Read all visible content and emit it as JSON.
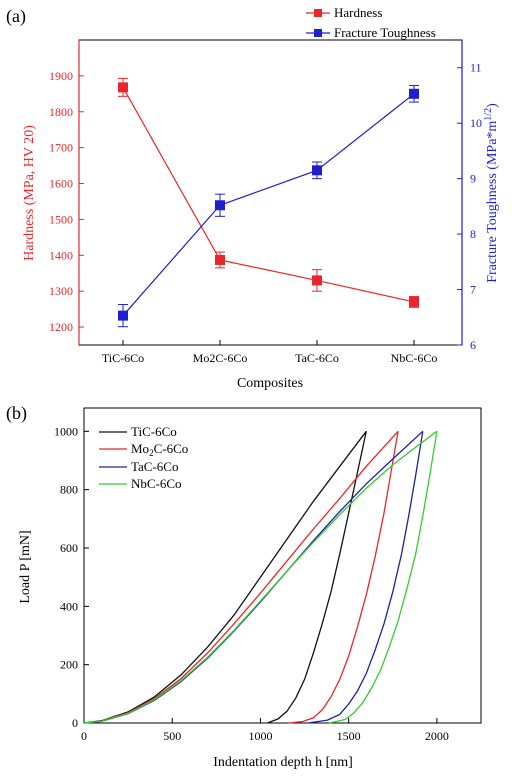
{
  "chart_data": [
    {
      "type": "line",
      "panel_label": "(a)",
      "categories": [
        "TiC-6Co",
        "Mo2C-6Co",
        "TaC-6Co",
        "NbC-6Co"
      ],
      "series": [
        {
          "name": "Hardness",
          "axis": "left",
          "color": "#e8262b",
          "values": [
            1868,
            1387,
            1330,
            1270
          ],
          "errors": [
            25,
            22,
            30,
            15
          ]
        },
        {
          "name": "Fracture Toughness",
          "axis": "right",
          "color": "#1f1fd0",
          "values": [
            6.53,
            8.52,
            9.15,
            10.53
          ],
          "errors": [
            0.2,
            0.2,
            0.15,
            0.15
          ]
        }
      ],
      "xlabel": "Composites",
      "ylabel_left": "Hardness (MPa, HV 20)",
      "ylabel_right": "Fracture Toughness (MPa*m",
      "ylabel_right_sup": "1/2",
      "ylabel_right_end": ")",
      "ylim_left": [
        1150,
        2000
      ],
      "ylim_right": [
        6,
        11.5
      ],
      "yticks_left": [
        "1200",
        "1300",
        "1400",
        "1500",
        "1600",
        "1700",
        "1800",
        "1900"
      ],
      "yticks_left_values": [
        1200,
        1300,
        1400,
        1500,
        1600,
        1700,
        1800,
        1900
      ],
      "yticks_right": [
        "6",
        "7",
        "8",
        "9",
        "10",
        "11"
      ],
      "yticks_right_values": [
        6,
        7,
        8,
        9,
        10,
        11
      ],
      "legend_position": "top-right"
    },
    {
      "type": "line",
      "panel_label": "(b)",
      "xlabel": "Indentation depth h [nm]",
      "ylabel": "Load P [mN]",
      "xlim": [
        0,
        2250
      ],
      "ylim": [
        0,
        1080
      ],
      "xticks": [
        "0",
        "500",
        "1000",
        "1500",
        "2000"
      ],
      "xticks_values": [
        0,
        500,
        1000,
        1500,
        2000
      ],
      "yticks": [
        "0",
        "200",
        "400",
        "600",
        "800",
        "1000"
      ],
      "yticks_values": [
        0,
        200,
        400,
        600,
        800,
        1000
      ],
      "legend_position": "top-left",
      "series": [
        {
          "name": "TiC-6Co",
          "legend_base": "TiC-6Co",
          "legend_sub": "",
          "legend_rest": "",
          "color": "#111111",
          "loading": [
            [
              0,
              0
            ],
            [
              100,
              8
            ],
            [
              250,
              38
            ],
            [
              400,
              90
            ],
            [
              550,
              165
            ],
            [
              700,
              260
            ],
            [
              850,
              370
            ],
            [
              1000,
              500
            ],
            [
              1150,
              630
            ],
            [
              1300,
              760
            ],
            [
              1450,
              880
            ],
            [
              1600,
              1000
            ]
          ],
          "unloading": [
            [
              1600,
              1000
            ],
            [
              1550,
              860
            ],
            [
              1500,
              720
            ],
            [
              1450,
              580
            ],
            [
              1400,
              450
            ],
            [
              1350,
              340
            ],
            [
              1300,
              240
            ],
            [
              1250,
              150
            ],
            [
              1200,
              85
            ],
            [
              1150,
              40
            ],
            [
              1100,
              14
            ],
            [
              1040,
              0
            ]
          ]
        },
        {
          "name": "Mo2C-6Co",
          "legend_base": "Mo",
          "legend_sub": "2",
          "legend_rest": "C-6Co",
          "color": "#e8262b",
          "loading": [
            [
              0,
              0
            ],
            [
              100,
              7
            ],
            [
              250,
              35
            ],
            [
              400,
              84
            ],
            [
              550,
              152
            ],
            [
              700,
              240
            ],
            [
              850,
              340
            ],
            [
              1000,
              445
            ],
            [
              1150,
              555
            ],
            [
              1300,
              665
            ],
            [
              1450,
              770
            ],
            [
              1600,
              880
            ],
            [
              1780,
              1000
            ]
          ],
          "unloading": [
            [
              1780,
              1000
            ],
            [
              1740,
              860
            ],
            [
              1700,
              720
            ],
            [
              1650,
              570
            ],
            [
              1600,
              440
            ],
            [
              1550,
              330
            ],
            [
              1500,
              230
            ],
            [
              1450,
              150
            ],
            [
              1400,
              90
            ],
            [
              1350,
              45
            ],
            [
              1300,
              18
            ],
            [
              1240,
              5
            ],
            [
              1160,
              0
            ]
          ]
        },
        {
          "name": "TaC-6Co",
          "legend_base": "TaC-6Co",
          "legend_sub": "",
          "legend_rest": "",
          "color": "#1f1fa8",
          "loading": [
            [
              0,
              0
            ],
            [
              100,
              6
            ],
            [
              250,
              32
            ],
            [
              400,
              78
            ],
            [
              550,
              142
            ],
            [
              700,
              222
            ],
            [
              850,
              315
            ],
            [
              1000,
              415
            ],
            [
              1150,
              520
            ],
            [
              1300,
              625
            ],
            [
              1450,
              725
            ],
            [
              1600,
              820
            ],
            [
              1750,
              905
            ],
            [
              1920,
              1000
            ]
          ],
          "unloading": [
            [
              1920,
              1000
            ],
            [
              1880,
              850
            ],
            [
              1840,
              710
            ],
            [
              1800,
              580
            ],
            [
              1750,
              450
            ],
            [
              1700,
              340
            ],
            [
              1650,
              250
            ],
            [
              1600,
              170
            ],
            [
              1550,
              110
            ],
            [
              1500,
              65
            ],
            [
              1450,
              30
            ],
            [
              1380,
              10
            ],
            [
              1270,
              0
            ]
          ]
        },
        {
          "name": "NbC-6Co",
          "legend_base": "NbC-6Co",
          "legend_sub": "",
          "legend_rest": "",
          "color": "#33cc33",
          "loading": [
            [
              0,
              0
            ],
            [
              100,
              6
            ],
            [
              250,
              33
            ],
            [
              400,
              80
            ],
            [
              550,
              145
            ],
            [
              700,
              225
            ],
            [
              850,
              318
            ],
            [
              1000,
              418
            ],
            [
              1150,
              520
            ],
            [
              1300,
              620
            ],
            [
              1450,
              715
            ],
            [
              1600,
              805
            ],
            [
              1750,
              885
            ],
            [
              1900,
              955
            ],
            [
              2000,
              1000
            ]
          ],
          "unloading": [
            [
              2000,
              1000
            ],
            [
              1960,
              850
            ],
            [
              1920,
              710
            ],
            [
              1880,
              580
            ],
            [
              1830,
              460
            ],
            [
              1780,
              350
            ],
            [
              1730,
              260
            ],
            [
              1680,
              180
            ],
            [
              1630,
              120
            ],
            [
              1580,
              70
            ],
            [
              1530,
              35
            ],
            [
              1480,
              12
            ],
            [
              1390,
              0
            ]
          ]
        }
      ]
    }
  ]
}
